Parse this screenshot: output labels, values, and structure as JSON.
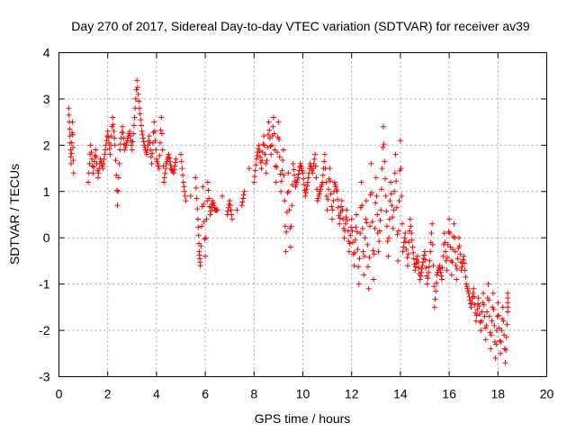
{
  "chart_data": {
    "type": "scatter",
    "title": "Day 270 of 2017, Sidereal Day-to-day VTEC variation (SDTVAR) for receiver av39",
    "xlabel": "GPS time / hours",
    "ylabel": "SDTVAR / TECUs",
    "xlim": [
      0,
      20
    ],
    "ylim": [
      -3,
      4
    ],
    "xticks": [
      "0",
      "2",
      "4",
      "6",
      "8",
      "10",
      "12",
      "14",
      "16",
      "18",
      "20"
    ],
    "yticks": [
      "-3",
      "-2",
      "-1",
      "0",
      "1",
      "2",
      "3",
      "4"
    ],
    "grid": true,
    "marker": "plus",
    "color": "#ff0000",
    "series": [
      {
        "name": "SDTVAR",
        "points": [
          [
            0.4,
            2.8
          ],
          [
            0.45,
            2.2
          ],
          [
            0.5,
            1.6
          ],
          [
            0.55,
            2.5
          ],
          [
            0.6,
            1.4
          ],
          [
            1.2,
            1.2
          ],
          [
            1.3,
            2.0
          ],
          [
            1.4,
            1.4
          ],
          [
            1.5,
            1.9
          ],
          [
            1.6,
            1.3
          ],
          [
            1.7,
            1.7
          ],
          [
            1.8,
            1.5
          ],
          [
            1.9,
            1.9
          ],
          [
            2.0,
            2.3
          ],
          [
            2.1,
            1.8
          ],
          [
            2.2,
            2.6
          ],
          [
            2.3,
            2.0
          ],
          [
            2.4,
            0.7
          ],
          [
            2.5,
            1.9
          ],
          [
            2.6,
            2.4
          ],
          [
            2.7,
            1.9
          ],
          [
            2.8,
            2.1
          ],
          [
            2.9,
            2.3
          ],
          [
            3.0,
            1.9
          ],
          [
            3.1,
            2.6
          ],
          [
            3.2,
            3.4
          ],
          [
            3.3,
            2.8
          ],
          [
            3.4,
            2.3
          ],
          [
            3.5,
            2.0
          ],
          [
            3.6,
            1.8
          ],
          [
            3.7,
            2.2
          ],
          [
            3.8,
            1.6
          ],
          [
            3.9,
            2.5
          ],
          [
            4.0,
            1.7
          ],
          [
            4.1,
            1.5
          ],
          [
            4.2,
            2.6
          ],
          [
            4.3,
            1.2
          ],
          [
            4.4,
            1.6
          ],
          [
            4.5,
            1.8
          ],
          [
            4.6,
            1.5
          ],
          [
            4.7,
            1.4
          ],
          [
            4.8,
            1.7
          ],
          [
            5.0,
            1.8
          ],
          [
            5.1,
            1.2
          ],
          [
            5.2,
            0.8
          ],
          [
            5.4,
            0.9
          ],
          [
            5.6,
            1.3
          ],
          [
            5.7,
            0.4
          ],
          [
            5.75,
            -0.3
          ],
          [
            5.8,
            -0.6
          ],
          [
            5.9,
            1.1
          ],
          [
            6.0,
            -0.4
          ],
          [
            6.1,
            1.2
          ],
          [
            6.2,
            0.5
          ],
          [
            6.3,
            0.8
          ],
          [
            6.4,
            0.6
          ],
          [
            6.5,
            0.6
          ],
          [
            6.7,
            0.9
          ],
          [
            6.9,
            0.5
          ],
          [
            7.0,
            0.8
          ],
          [
            7.1,
            0.4
          ],
          [
            7.3,
            0.6
          ],
          [
            7.5,
            0.7
          ],
          [
            7.6,
            1.0
          ],
          [
            7.8,
            1.5
          ],
          [
            8.0,
            1.2
          ],
          [
            8.1,
            1.7
          ],
          [
            8.2,
            2.0
          ],
          [
            8.3,
            1.5
          ],
          [
            8.4,
            2.2
          ],
          [
            8.5,
            1.4
          ],
          [
            8.6,
            2.5
          ],
          [
            8.7,
            1.8
          ],
          [
            8.8,
            2.6
          ],
          [
            8.9,
            1.2
          ],
          [
            9.0,
            2.5
          ],
          [
            9.1,
            1.0
          ],
          [
            9.2,
            1.9
          ],
          [
            9.3,
            -0.3
          ],
          [
            9.4,
            1.4
          ],
          [
            9.5,
            -0.2
          ],
          [
            9.6,
            1.6
          ],
          [
            9.7,
            1.1
          ],
          [
            9.8,
            1.3
          ],
          [
            9.9,
            1.6
          ],
          [
            10.0,
            1.4
          ],
          [
            10.1,
            0.9
          ],
          [
            10.2,
            1.2
          ],
          [
            10.3,
            1.6
          ],
          [
            10.4,
            1.4
          ],
          [
            10.5,
            1.8
          ],
          [
            10.6,
            0.8
          ],
          [
            10.7,
            1.0
          ],
          [
            10.8,
            1.2
          ],
          [
            10.9,
            1.8
          ],
          [
            11.0,
            0.6
          ],
          [
            11.1,
            1.5
          ],
          [
            11.2,
            0.4
          ],
          [
            11.3,
            1.2
          ],
          [
            11.4,
            1.0
          ],
          [
            11.5,
            0.3
          ],
          [
            11.6,
            0.8
          ],
          [
            11.7,
            0.0
          ],
          [
            11.8,
            0.6
          ],
          [
            11.9,
            -0.3
          ],
          [
            12.0,
            0.4
          ],
          [
            12.1,
            -0.6
          ],
          [
            12.2,
            0.5
          ],
          [
            12.3,
            -1.0
          ],
          [
            12.4,
            1.2
          ],
          [
            12.5,
            -0.8
          ],
          [
            12.6,
            0.8
          ],
          [
            12.7,
            -1.1
          ],
          [
            12.8,
            1.6
          ],
          [
            12.9,
            -0.9
          ],
          [
            13.0,
            1.3
          ],
          [
            13.1,
            -0.3
          ],
          [
            13.2,
            0.6
          ],
          [
            13.3,
            2.4
          ],
          [
            13.4,
            0.9
          ],
          [
            13.5,
            -0.4
          ],
          [
            13.6,
            1.2
          ],
          [
            13.7,
            0.2
          ],
          [
            13.8,
            1.8
          ],
          [
            13.9,
            -0.5
          ],
          [
            14.0,
            2.1
          ],
          [
            14.1,
            -0.3
          ],
          [
            14.2,
            0.1
          ],
          [
            14.3,
            -0.6
          ],
          [
            14.4,
            0.4
          ],
          [
            14.5,
            -0.2
          ],
          [
            14.6,
            -0.7
          ],
          [
            14.7,
            -0.4
          ],
          [
            14.8,
            -0.9
          ],
          [
            14.9,
            -0.6
          ],
          [
            15.0,
            -0.3
          ],
          [
            15.1,
            -1.0
          ],
          [
            15.2,
            -0.5
          ],
          [
            15.3,
            0.3
          ],
          [
            15.4,
            -1.5
          ],
          [
            15.5,
            -0.8
          ],
          [
            15.6,
            -0.6
          ],
          [
            15.7,
            -0.9
          ],
          [
            15.8,
            0.1
          ],
          [
            15.9,
            -0.7
          ],
          [
            16.0,
            0.4
          ],
          [
            16.1,
            -0.8
          ],
          [
            16.2,
            0.3
          ],
          [
            16.3,
            -0.9
          ],
          [
            16.4,
            0.0
          ],
          [
            16.5,
            -0.7
          ],
          [
            16.6,
            -0.4
          ],
          [
            16.7,
            -1.0
          ],
          [
            16.8,
            -1.2
          ],
          [
            16.9,
            -1.5
          ],
          [
            17.0,
            -1.1
          ],
          [
            17.1,
            -1.8
          ],
          [
            17.2,
            -1.3
          ],
          [
            17.3,
            -2.0
          ],
          [
            17.4,
            -1.2
          ],
          [
            17.5,
            -2.2
          ],
          [
            17.6,
            -1.0
          ],
          [
            17.7,
            -2.4
          ],
          [
            17.8,
            -1.2
          ],
          [
            17.9,
            -2.6
          ],
          [
            18.0,
            -1.4
          ],
          [
            18.1,
            -2.5
          ],
          [
            18.2,
            -1.5
          ],
          [
            18.3,
            -2.7
          ],
          [
            18.4,
            -1.6
          ],
          [
            18.4,
            -1.2
          ]
        ]
      }
    ]
  }
}
